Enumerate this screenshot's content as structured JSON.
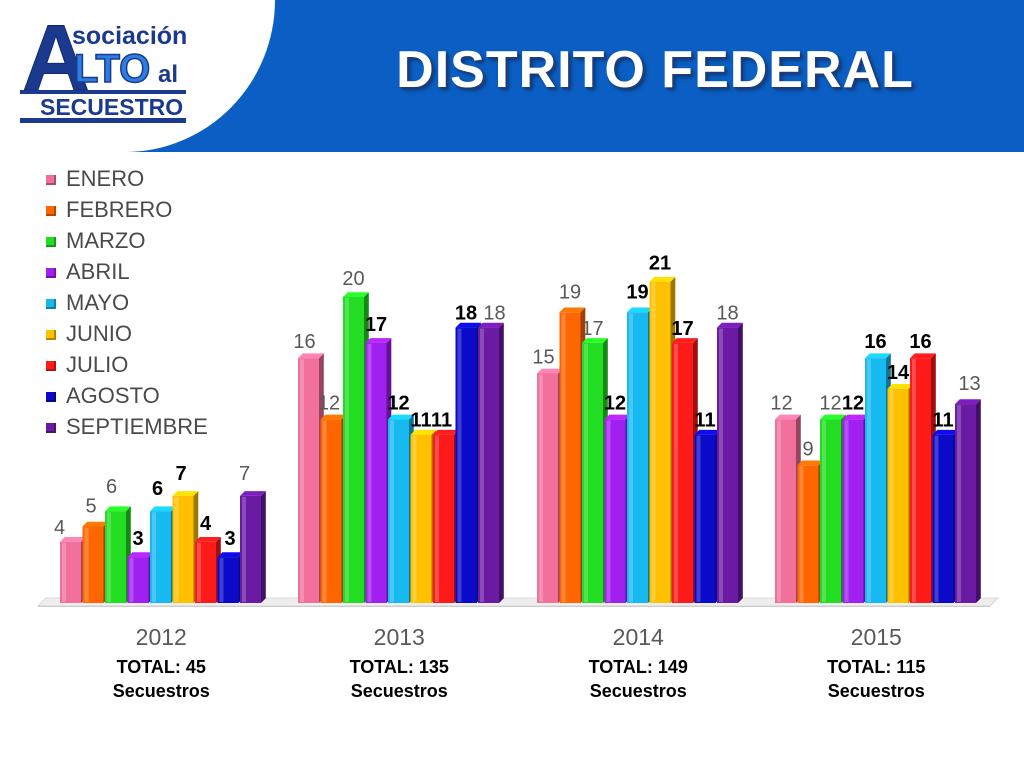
{
  "header": {
    "title": "DISTRITO FEDERAL",
    "logo": {
      "line1": "sociación",
      "big_a": "A",
      "mid": "LTO",
      "al": "al",
      "line3": "SECUESTRO"
    }
  },
  "colors": {
    "header_band": "#0b5fc4",
    "logo_blue": "#1b3a8f",
    "logo_light": "#2c7fe0"
  },
  "chart_data": {
    "type": "bar",
    "style": "3d-clustered-columns",
    "categories": [
      "2012",
      "2013",
      "2014",
      "2015"
    ],
    "totals": [
      "TOTAL: 45",
      "TOTAL: 135",
      "TOTAL: 149",
      "TOTAL: 115"
    ],
    "totals_sub": [
      "Secuestros",
      "Secuestros",
      "Secuestros",
      "Secuestros"
    ],
    "ylim": [
      0,
      22
    ],
    "grid": false,
    "legend_position": "left",
    "series": [
      {
        "name": "ENERO",
        "color": "#f0709b",
        "values": [
          4,
          16,
          15,
          12
        ]
      },
      {
        "name": "FEBRERO",
        "color": "#ff6600",
        "values": [
          5,
          12,
          19,
          9
        ]
      },
      {
        "name": "MARZO",
        "color": "#22dd22",
        "values": [
          6,
          20,
          17,
          12
        ]
      },
      {
        "name": "ABRIL",
        "color": "#a020f0",
        "values": [
          3,
          17,
          12,
          12
        ]
      },
      {
        "name": "MAYO",
        "color": "#16b9f0",
        "values": [
          6,
          12,
          19,
          16
        ]
      },
      {
        "name": "JUNIO",
        "color": "#ffc000",
        "values": [
          7,
          11,
          21,
          14
        ]
      },
      {
        "name": "JULIO",
        "color": "#ff1a1a",
        "values": [
          4,
          11,
          17,
          16
        ]
      },
      {
        "name": "AGOSTO",
        "color": "#0a0ac8",
        "values": [
          3,
          18,
          11,
          11
        ]
      },
      {
        "name": "SEPTIEMBRE",
        "color": "#6a1aa3",
        "values": [
          7,
          18,
          18,
          13
        ]
      }
    ],
    "labels": [
      [
        {
          "t": "4",
          "dx": -11,
          "dy": 4,
          "bold": false,
          "c": "#595959"
        },
        {
          "t": "5",
          "dx": -2,
          "dy": -2,
          "bold": false,
          "c": "#595959"
        },
        {
          "t": "6",
          "dx": -4,
          "dy": -6,
          "bold": false,
          "c": "#595959"
        },
        {
          "t": "3",
          "dx": 0,
          "dy": 0,
          "bold": true,
          "c": "#000000"
        },
        {
          "t": "6",
          "dx": -3,
          "dy": -4,
          "bold": true,
          "c": "#000000"
        },
        {
          "t": "7",
          "dx": -2,
          "dy": -4,
          "bold": true,
          "c": "#000000"
        },
        {
          "t": "4",
          "dx": 0,
          "dy": 0,
          "bold": true,
          "c": "#000000"
        },
        {
          "t": "3",
          "dx": 2,
          "dy": 0,
          "bold": true,
          "c": "#000000"
        },
        {
          "t": "7",
          "dx": -6,
          "dy": -4,
          "bold": false,
          "c": "#595959"
        }
      ],
      [
        {
          "t": "16",
          "dx": -4,
          "dy": 2,
          "bold": false,
          "c": "#595959"
        },
        {
          "t": "12",
          "dx": -2,
          "dy": 2,
          "bold": false,
          "c": "#595959"
        },
        {
          "t": "20",
          "dx": 0,
          "dy": 0,
          "bold": false,
          "c": "#595959"
        },
        {
          "t": "17",
          "dx": 0,
          "dy": 0,
          "bold": true,
          "c": "#000000"
        },
        {
          "t": "12",
          "dx": 0,
          "dy": 2,
          "bold": true,
          "c": "#000000"
        },
        {
          "t": "11",
          "dx": 0,
          "dy": 4,
          "bold": true,
          "c": "#000000"
        },
        {
          "t": "11",
          "dx": -2,
          "dy": 4,
          "bold": true,
          "c": "#000000"
        },
        {
          "t": "18",
          "dx": 0,
          "dy": 4,
          "bold": true,
          "c": "#000000"
        },
        {
          "t": "18",
          "dx": 6,
          "dy": 4,
          "bold": false,
          "c": "#595959"
        }
      ],
      [
        {
          "t": "15",
          "dx": -4,
          "dy": 2,
          "bold": false,
          "c": "#595959"
        },
        {
          "t": "19",
          "dx": 0,
          "dy": -2,
          "bold": false,
          "c": "#595959"
        },
        {
          "t": "17",
          "dx": 0,
          "dy": 4,
          "bold": false,
          "c": "#595959"
        },
        {
          "t": "12",
          "dx": 0,
          "dy": 2,
          "bold": true,
          "c": "#000000"
        },
        {
          "t": "19",
          "dx": 0,
          "dy": -2,
          "bold": true,
          "c": "#000000"
        },
        {
          "t": "21",
          "dx": 0,
          "dy": 0,
          "bold": true,
          "c": "#000000"
        },
        {
          "t": "17",
          "dx": 0,
          "dy": 4,
          "bold": true,
          "c": "#000000"
        },
        {
          "t": "11",
          "dx": 0,
          "dy": 4,
          "bold": true,
          "c": "#000000"
        },
        {
          "t": "18",
          "dx": 0,
          "dy": 4,
          "bold": false,
          "c": "#595959"
        }
      ],
      [
        {
          "t": "12",
          "dx": -4,
          "dy": 2,
          "bold": false,
          "c": "#595959"
        },
        {
          "t": "9",
          "dx": 0,
          "dy": 2,
          "bold": false,
          "c": "#595959"
        },
        {
          "t": "12",
          "dx": 0,
          "dy": 2,
          "bold": false,
          "c": "#595959"
        },
        {
          "t": "12",
          "dx": 0,
          "dy": 2,
          "bold": true,
          "c": "#000000"
        },
        {
          "t": "16",
          "dx": 0,
          "dy": 2,
          "bold": true,
          "c": "#000000"
        },
        {
          "t": "14",
          "dx": 0,
          "dy": 2,
          "bold": true,
          "c": "#000000"
        },
        {
          "t": "16",
          "dx": 0,
          "dy": 2,
          "bold": true,
          "c": "#000000"
        },
        {
          "t": "11",
          "dx": 0,
          "dy": 4,
          "bold": true,
          "c": "#000000"
        },
        {
          "t": "13",
          "dx": 4,
          "dy": -2,
          "bold": false,
          "c": "#595959"
        }
      ]
    ]
  }
}
